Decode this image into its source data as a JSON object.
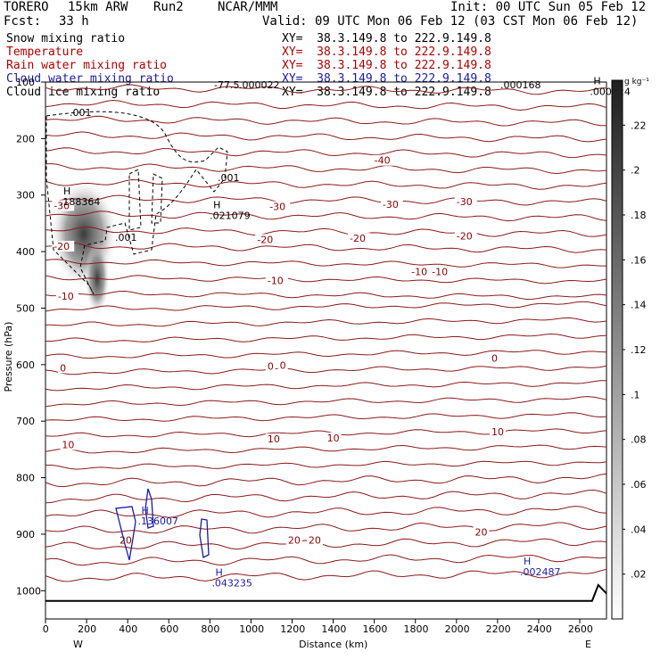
{
  "header": {
    "model": "TORERO",
    "resolution": "15km ARW",
    "run": "Run2",
    "institution": "NCAR/MMM",
    "init": "Init: 00 UTC Sun 05 Feb 12",
    "fcst_label": "Fcst:",
    "fcst_value": "33 h",
    "valid": "Valid: 09 UTC Mon 06 Feb 12 (03 CST Mon 06 Feb 12)"
  },
  "fields": [
    {
      "name": "Snow mixing ratio",
      "xy": "XY=  38.3.149.8 to 222.9.149.8",
      "color": "#000000"
    },
    {
      "name": "Temperature",
      "xy": "XY=  38.3.149.8 to 222.9.149.8",
      "color": "#b00000"
    },
    {
      "name": "Rain water mixing ratio",
      "xy": "XY=  38.3.149.8 to 222.9.149.8",
      "color": "#b00000"
    },
    {
      "name": "Cloud water mixing ratio",
      "xy": "XY=  38.3.149.8 to 222.9.149.8",
      "color": "#1a1aa8"
    },
    {
      "name": "Cloud ice mixing ratio",
      "xy": "XY=  38.3.149.8 to 222.9.149.8",
      "color": "#000000"
    }
  ],
  "chart_data": {
    "type": "cross-section contour",
    "xlabel": "Distance (km)",
    "ylabel": "Pressure (hPa)",
    "x_range": [
      0,
      2730
    ],
    "x_ticks": [
      0,
      200,
      400,
      600,
      800,
      1000,
      1200,
      1400,
      1600,
      1800,
      2000,
      2200,
      2400,
      2600
    ],
    "y_range": [
      100,
      1050
    ],
    "y_ticks": [
      100,
      200,
      300,
      400,
      500,
      600,
      700,
      800,
      900,
      1000
    ],
    "endpoints": {
      "left": "W",
      "right": "E"
    },
    "colorbar": {
      "unit": "g kg⁻¹",
      "labels": [
        ".02",
        ".04",
        ".06",
        ".08",
        ".1",
        ".12",
        ".14",
        ".16",
        ".18",
        ".2",
        ".22"
      ],
      "range": [
        0,
        0.24
      ]
    },
    "temperature_contours": [
      {
        "value": -40,
        "labels": [
          "-40"
        ]
      },
      {
        "value": -30,
        "labels": [
          "-30",
          "-30",
          "-30",
          "-30"
        ]
      },
      {
        "value": -20,
        "labels": [
          "-20",
          "-20",
          "-20",
          "-20"
        ]
      },
      {
        "value": -10,
        "labels": [
          "-10",
          "-10",
          "-10",
          "-10"
        ]
      },
      {
        "value": 0,
        "labels": [
          "0",
          "0",
          "0",
          "0"
        ]
      },
      {
        "value": 10,
        "labels": [
          "10",
          "10",
          "10",
          "10"
        ]
      },
      {
        "value": 20,
        "labels": [
          "20",
          "20",
          "20",
          "20"
        ]
      }
    ],
    "top_labels": [
      "-77.5",
      ".000022",
      ".000168",
      ".000224"
    ],
    "maxima": [
      {
        "label": "H",
        "value": ".188364",
        "x": 130,
        "p": 305
      },
      {
        "label": "H",
        "value": ".021079",
        "x": 860,
        "p": 330
      },
      {
        "label": "H",
        "value": ".136007",
        "x": 510,
        "p": 870
      },
      {
        "label": "H",
        "value": ".043235",
        "x": 870,
        "p": 980
      },
      {
        "label": "H",
        "value": ".002487",
        "x": 2370,
        "p": 960
      },
      {
        "label": "H",
        "value": ".000224",
        "x": 2710,
        "p": 110
      }
    ],
    "cloud_ice_labels": [
      ".001",
      ".001",
      ".001"
    ],
    "snow_maximum": {
      "x": 230,
      "p": 400,
      "value": 0.188
    }
  }
}
